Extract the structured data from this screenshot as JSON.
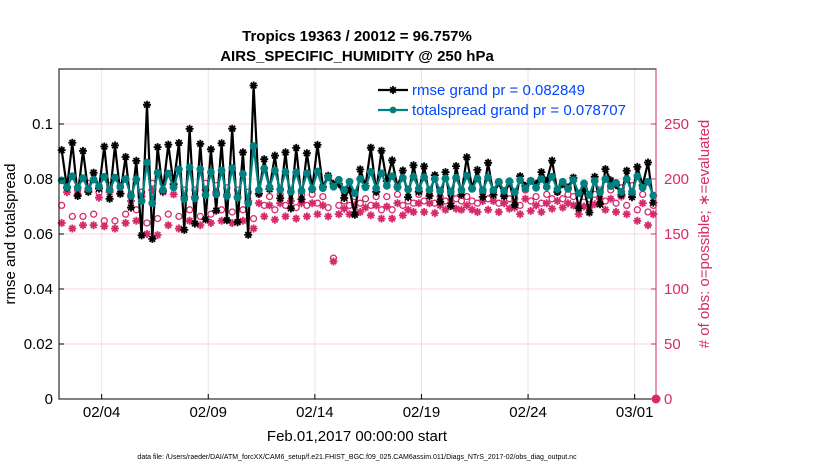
{
  "chart_data": {
    "type": "line",
    "title": "Tropics 19363 / 20012 = 96.757%",
    "subtitle": "AIRS_SPECIFIC_HUMIDITY @ 250 hPa",
    "xlabel": "Feb.01,2017 00:00:00 start",
    "ylabel": "rmse and totalspread",
    "y2label": "# of obs: o=possible; ∗=evaluated",
    "footnote": "data file: /Users/raeder/DAI/ATM_forcXX/CAM6_setup/f.e21.FHIST_BGC.f09_025.CAM6assim.011/Diags_NTrS_2017-02/obs_diag_output.nc",
    "xlim": [
      1,
      29
    ],
    "ylim": [
      0,
      0.12
    ],
    "y2lim": [
      0,
      300
    ],
    "x_ticks": [
      3,
      8,
      13,
      18,
      23,
      28
    ],
    "x_tick_labels": [
      "02/04",
      "02/09",
      "02/14",
      "02/19",
      "02/24",
      "03/01"
    ],
    "y_ticks": [
      0,
      0.02,
      0.04,
      0.06,
      0.08,
      0.1
    ],
    "y_tick_labels": [
      "0",
      "0.02",
      "0.04",
      "0.06",
      "0.08",
      "0.1"
    ],
    "y2_ticks": [
      0,
      50,
      100,
      150,
      200,
      250
    ],
    "y2_tick_labels": [
      "0",
      "50",
      "100",
      "150",
      "200",
      "250"
    ],
    "grid": true,
    "legend_position": "top-right",
    "series": [
      {
        "name": "rmse grand pr = 0.082849",
        "color": "#000000",
        "marker": "star",
        "x_start": 1.125,
        "x_step": 0.25,
        "values": [
          0.0905,
          0.0768,
          0.0932,
          0.0738,
          0.0902,
          0.0753,
          0.0823,
          0.0765,
          0.0918,
          0.0728,
          0.0922,
          0.0746,
          0.088,
          0.0696,
          0.0866,
          0.0595,
          0.107,
          0.0582,
          0.0916,
          0.0756,
          0.0925,
          0.0781,
          0.0931,
          0.0615,
          0.0982,
          0.0638,
          0.0928,
          0.0653,
          0.0908,
          0.0685,
          0.093,
          0.065,
          0.0983,
          0.0643,
          0.0897,
          0.0597,
          0.114,
          0.0747,
          0.0872,
          0.0763,
          0.0885,
          0.073,
          0.0897,
          0.0693,
          0.0913,
          0.0726,
          0.0894,
          0.0763,
          0.0924,
          0.0772,
          0.0812,
          0.0783,
          0.0782,
          0.0731,
          0.0762,
          0.067,
          0.0835,
          0.0775,
          0.0914,
          0.0753,
          0.0903,
          0.0792,
          0.0868,
          0.0771,
          0.0831,
          0.0734,
          0.085,
          0.0754,
          0.0846,
          0.0738,
          0.0814,
          0.0717,
          0.0825,
          0.0702,
          0.0847,
          0.0743,
          0.0879,
          0.0766,
          0.0833,
          0.0735,
          0.0859,
          0.0742,
          0.0787,
          0.0737,
          0.0789,
          0.0706,
          0.081,
          0.0775,
          0.0793,
          0.0782,
          0.0825,
          0.0793,
          0.0867,
          0.0753,
          0.0781,
          0.0769,
          0.0805,
          0.0693,
          0.0765,
          0.0678,
          0.0808,
          0.0708,
          0.0836,
          0.0795,
          0.0778,
          0.0743,
          0.083,
          0.0734,
          0.0844,
          0.0777,
          0.086,
          0.0714
        ]
      },
      {
        "name": "totalspread grand pr = 0.078707",
        "color": "#008080",
        "marker": "circle",
        "x_start": 1.125,
        "x_step": 0.25,
        "values": [
          0.0795,
          0.077,
          0.081,
          0.0768,
          0.0803,
          0.0764,
          0.0798,
          0.0773,
          0.0808,
          0.076,
          0.0805,
          0.0771,
          0.08,
          0.0738,
          0.0798,
          0.072,
          0.086,
          0.0712,
          0.0823,
          0.076,
          0.082,
          0.077,
          0.0835,
          0.0727,
          0.0842,
          0.073,
          0.0836,
          0.0742,
          0.0825,
          0.0744,
          0.0831,
          0.0738,
          0.084,
          0.0732,
          0.0818,
          0.0712,
          0.092,
          0.076,
          0.0838,
          0.077,
          0.0831,
          0.0762,
          0.0826,
          0.0754,
          0.0824,
          0.0757,
          0.0821,
          0.0764,
          0.0827,
          0.0767,
          0.0806,
          0.0772,
          0.0797,
          0.076,
          0.079,
          0.0748,
          0.08,
          0.077,
          0.0826,
          0.0766,
          0.0821,
          0.0775,
          0.081,
          0.077,
          0.0804,
          0.0762,
          0.0808,
          0.0765,
          0.0806,
          0.076,
          0.08,
          0.0757,
          0.0802,
          0.0754,
          0.0805,
          0.076,
          0.0812,
          0.0764,
          0.0802,
          0.076,
          0.0806,
          0.076,
          0.079,
          0.0757,
          0.0792,
          0.0752,
          0.0796,
          0.0766,
          0.0793,
          0.0768,
          0.08,
          0.0771,
          0.0808,
          0.0763,
          0.079,
          0.0764,
          0.0796,
          0.0748,
          0.0784,
          0.0742,
          0.0793,
          0.0752,
          0.08,
          0.0774,
          0.0786,
          0.0753,
          0.08,
          0.0753,
          0.081,
          0.0768,
          0.079,
          0.074
        ]
      },
      {
        "name": "possible",
        "color": "#d62b6b",
        "marker": "open-circle",
        "axis": "right",
        "x_start": 1.125,
        "x_step": 0.25,
        "values": [
          176,
          192,
          166,
          190,
          166,
          196,
          168,
          188,
          162,
          194,
          162,
          194,
          168,
          186,
          172,
          188,
          160,
          196,
          164,
          196,
          168,
          192,
          166,
          190,
          172,
          190,
          166,
          196,
          168,
          194,
          172,
          192,
          170,
          190,
          172,
          188,
          164,
          186,
          176,
          184,
          172,
          186,
          176,
          188,
          174,
          186,
          176,
          186,
          178,
          184,
          174,
          128,
          176,
          180,
          176,
          184,
          178,
          182,
          176,
          184,
          172,
          184,
          172,
          186,
          176,
          180,
          178,
          186,
          180,
          186,
          178,
          184,
          180,
          186,
          182,
          180,
          184,
          180,
          178,
          188,
          182,
          188,
          178,
          186,
          182,
          182,
          176,
          190,
          180,
          184,
          178,
          186,
          182,
          188,
          182,
          186,
          184,
          176,
          184,
          182,
          186,
          190,
          180,
          190,
          178,
          192,
          176,
          194,
          172,
          186,
          170,
          176
        ]
      },
      {
        "name": "evaluated",
        "color": "#d62b6b",
        "marker": "asterisk",
        "axis": "right",
        "x_start": 1.125,
        "x_step": 0.25,
        "values": [
          160,
          188,
          155,
          186,
          158,
          190,
          158,
          183,
          157,
          188,
          155,
          187,
          160,
          180,
          162,
          184,
          150,
          190,
          149,
          188,
          158,
          186,
          155,
          184,
          162,
          184,
          158,
          190,
          160,
          188,
          162,
          186,
          160,
          184,
          162,
          180,
          155,
          178,
          166,
          176,
          163,
          178,
          166,
          180,
          164,
          178,
          166,
          178,
          168,
          176,
          166,
          125,
          168,
          173,
          168,
          176,
          170,
          174,
          167,
          176,
          164,
          175,
          164,
          178,
          167,
          172,
          170,
          178,
          170,
          178,
          169,
          176,
          172,
          178,
          173,
          172,
          176,
          172,
          170,
          180,
          172,
          180,
          170,
          178,
          173,
          174,
          168,
          182,
          171,
          176,
          170,
          178,
          173,
          180,
          174,
          178,
          176,
          168,
          175,
          174,
          177,
          182,
          172,
          182,
          170,
          184,
          168,
          186,
          162,
          178,
          158,
          168
        ]
      }
    ]
  }
}
